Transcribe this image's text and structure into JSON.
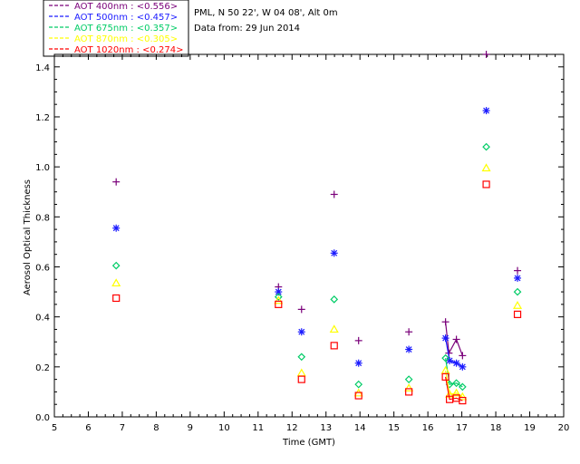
{
  "chart_data": {
    "type": "scatter",
    "title": "PML, N 50 22', W 04 08', Alt 0m",
    "subtitle": "Data from: 29 Jun 2014",
    "xlabel": "Time (GMT)",
    "ylabel": "Aerosol Optical Thickness",
    "xlim": [
      5,
      20
    ],
    "ylim": [
      0,
      1.45
    ],
    "x_ticks": [
      "5",
      "6",
      "7",
      "8",
      "9",
      "10",
      "11",
      "12",
      "13",
      "14",
      "15",
      "16",
      "17",
      "18",
      "19",
      "20"
    ],
    "y_ticks": [
      "0.0",
      "0.2",
      "0.4",
      "0.6",
      "0.8",
      "1.0",
      "1.2",
      "1.4"
    ],
    "grid": false,
    "legend_position": "top-left",
    "series": [
      {
        "name": "AOT  400nm : <0.556>",
        "color": "#7a007a",
        "marker": "plus",
        "x": [
          6.82,
          11.6,
          12.28,
          13.24,
          13.96,
          15.44,
          16.52,
          16.62,
          16.84,
          17.02,
          17.72,
          18.64
        ],
        "y": [
          0.94,
          0.52,
          0.43,
          0.89,
          0.305,
          0.34,
          0.38,
          0.255,
          0.31,
          0.245,
          1.45,
          0.585
        ]
      },
      {
        "name": "AOT  500nm : <0.457>",
        "color": "#1a1aff",
        "marker": "asterisk",
        "x": [
          6.82,
          11.6,
          12.28,
          13.24,
          13.96,
          15.44,
          16.52,
          16.64,
          16.84,
          17.02,
          17.72,
          18.64
        ],
        "y": [
          0.755,
          0.5,
          0.34,
          0.655,
          0.215,
          0.27,
          0.315,
          0.225,
          0.215,
          0.2,
          1.225,
          0.555
        ]
      },
      {
        "name": "AOT  675nm : <0.357>",
        "color": "#00cc66",
        "marker": "diamond",
        "x": [
          6.82,
          11.6,
          12.28,
          13.24,
          13.96,
          15.44,
          16.52,
          16.64,
          16.84,
          17.02,
          17.72,
          18.64
        ],
        "y": [
          0.605,
          0.48,
          0.24,
          0.47,
          0.13,
          0.15,
          0.235,
          0.13,
          0.135,
          0.12,
          1.08,
          0.5
        ]
      },
      {
        "name": "AOT  870nm : <0.305>",
        "color": "#ffff00",
        "marker": "triangle",
        "x": [
          6.82,
          11.6,
          12.28,
          13.24,
          13.96,
          15.44,
          16.52,
          16.64,
          16.84,
          17.02,
          17.72,
          18.64
        ],
        "y": [
          0.535,
          0.465,
          0.175,
          0.35,
          0.095,
          0.115,
          0.185,
          0.09,
          0.095,
          0.08,
          0.995,
          0.445
        ]
      },
      {
        "name": "AOT 1020nm : <0.274>",
        "color": "#ff0000",
        "marker": "square",
        "x": [
          6.82,
          11.6,
          12.28,
          13.24,
          13.96,
          15.44,
          16.52,
          16.64,
          16.84,
          17.02,
          17.72,
          18.64
        ],
        "y": [
          0.475,
          0.45,
          0.15,
          0.285,
          0.085,
          0.1,
          0.16,
          0.07,
          0.075,
          0.065,
          0.93,
          0.41
        ]
      }
    ]
  }
}
